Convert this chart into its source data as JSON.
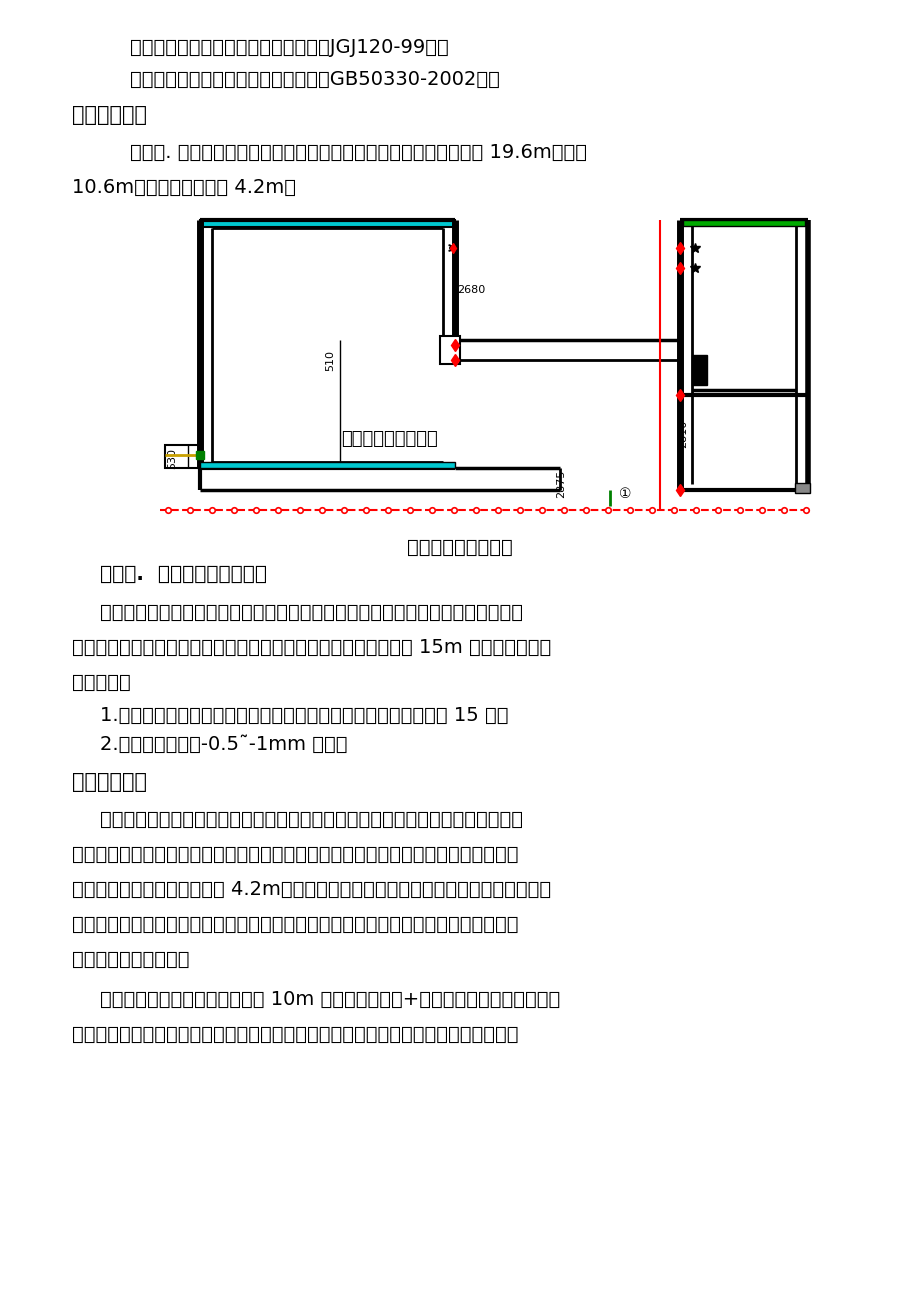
{
  "bg_color": "#ffffff",
  "text_color": "#000000",
  "line1": "（六）、《建筑基坑支护技术规程》（JGJ120-99）；",
  "line2": "（七）、《建筑边坡工程技术规范》（GB50330-2002）；",
  "heading1": "三、工程概况",
  "para1a": "（一）. 拟建消防水池在某某工业区压缩天然气加工厂项目南侧，长 19.6m，宽约",
  "para1b": "10.6m，消防水池基坑深 4.2m。",
  "diagram_label_inside": "消防水池现场平面图",
  "diagram_caption": "消防水池现场平面图",
  "subsec2": "（二）.  工程地质、水文条件",
  "body2a": "根据建设单位提供的地质勘查报告得知本工程的地质情况如下，按地层年代，成因",
  "body2b": "类型，自上而下分布如下：结合工程设计、施工需要，本方案只对 15m 深以内上的土层",
  "body2c": "进行叙述：",
  "list1": "1.淤泥质粘土：灰色，土质不均，主要由淤泥与粘土组成。层厚约 15 米。",
  "list2": "2.水位距现有地面-0.5˜-1mm 之间。",
  "heading2": "四、施工部署",
  "body3a": "出于对工程安全、进度、质量、经济综合考虑；结合现场的地理环境狭小、水文地",
  "body3b": "质情况，借鉴以往类似基础施工经验，同时参考本工程地质勘查报告对本工程基础施工",
  "body3c": "的有关建议。本工程基坑深度 4.2m，为保证基坑支护施工安全、可靠是本工程的重要施",
  "body3d": "工环节，对于本工程的基础钢筋混凝土施工相对较简单，重点控制基础钢筋隐蔽工程和",
  "body3e": "基础混凝土施工质量。",
  "body4a": "我司拟在本工程基坑施工中采用 10m 长工字钢钢板桩+支撑支护结构作为本工程边",
  "body4b": "坡支护措施。由于工程基坑较深且地表、下土层含水量较大，基坑施工时在基坑边角设"
}
